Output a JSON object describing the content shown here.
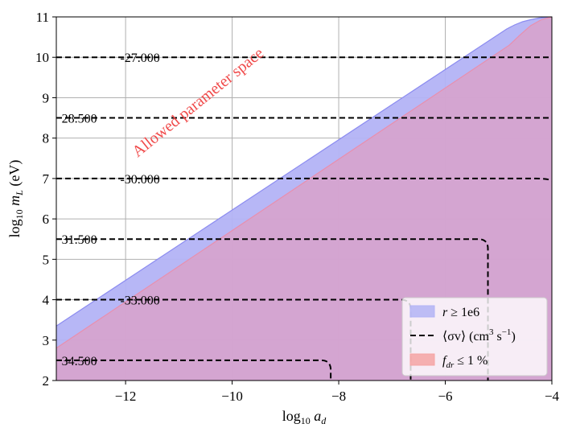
{
  "chart_data": {
    "type": "area",
    "xlim": [
      -13.3,
      -4
    ],
    "ylim": [
      2,
      11
    ],
    "x_ticks": [
      -12,
      -10,
      -8,
      -6,
      -4
    ],
    "x_tick_labels": [
      "−12",
      "−10",
      "−8",
      "−6",
      "−4"
    ],
    "y_ticks": [
      2,
      3,
      4,
      5,
      6,
      7,
      8,
      9,
      10,
      11
    ],
    "y_tick_labels": [
      "2",
      "3",
      "4",
      "5",
      "6",
      "7",
      "8",
      "9",
      "10",
      "11"
    ],
    "grid": true,
    "xlabel": {
      "prefix": "log",
      "sub": "10",
      "var": "a",
      "var_sub": "d"
    },
    "ylabel": {
      "prefix": "log",
      "sub": "10",
      "var": "m",
      "var_sub": "L",
      "unit": "(eV)"
    },
    "annotation": {
      "text": "Allowed parameter space",
      "color": "#f04a4a"
    },
    "regions": [
      {
        "label_html": "r ≥ 1e6",
        "color": "#b3b3f5",
        "edge_color": "#8c8cf0",
        "lower_bound_x": [
          -13.3,
          -4.85,
          -4.7,
          -4.55,
          -4.4,
          -4.25,
          -4.1,
          -4.0
        ],
        "lower_bound_y": [
          3.35,
          10.7,
          10.8,
          10.88,
          10.93,
          10.97,
          10.99,
          11.0
        ]
      },
      {
        "label_html": "f_dr ≤ 1 %",
        "color": "#d6a3cd",
        "edge_color": "#e98fae",
        "lower_bound_x": [
          -13.3,
          -4.8,
          -4.6,
          -4.4,
          -4.2,
          -4.0
        ],
        "lower_bound_y": [
          2.8,
          10.3,
          10.55,
          10.78,
          10.93,
          11.0
        ]
      }
    ],
    "contours": [
      {
        "label": "-27.000",
        "y": 10.0
      },
      {
        "label": "28.500",
        "y": 8.5
      },
      {
        "label": "-30.000",
        "y": 7.0,
        "x_end": -4.0,
        "bend_start": -4.3,
        "y_end": 6.95
      },
      {
        "label": "31.500",
        "y": 5.5,
        "corner_x": -5.2
      },
      {
        "label": "-33.000",
        "y": 4.0,
        "corner_x": -6.65
      },
      {
        "label": "34.500",
        "y": 2.5,
        "corner_x": -8.15
      }
    ],
    "legend": {
      "position": "lower-right",
      "entries": [
        {
          "kind": "patch",
          "color": "#b3b3f5",
          "text_main": "r",
          "text_rest": " ≥ 1e6"
        },
        {
          "kind": "line",
          "text_main": "⟨σv⟩ (cm",
          "text_rest": " s",
          "sup1": "3",
          "sup2": "−1",
          "close": ")"
        },
        {
          "kind": "patch",
          "color": "#f5a3a3",
          "text_main": "f",
          "sub": "dr",
          "text_rest": " ≤ 1 %"
        }
      ]
    }
  }
}
